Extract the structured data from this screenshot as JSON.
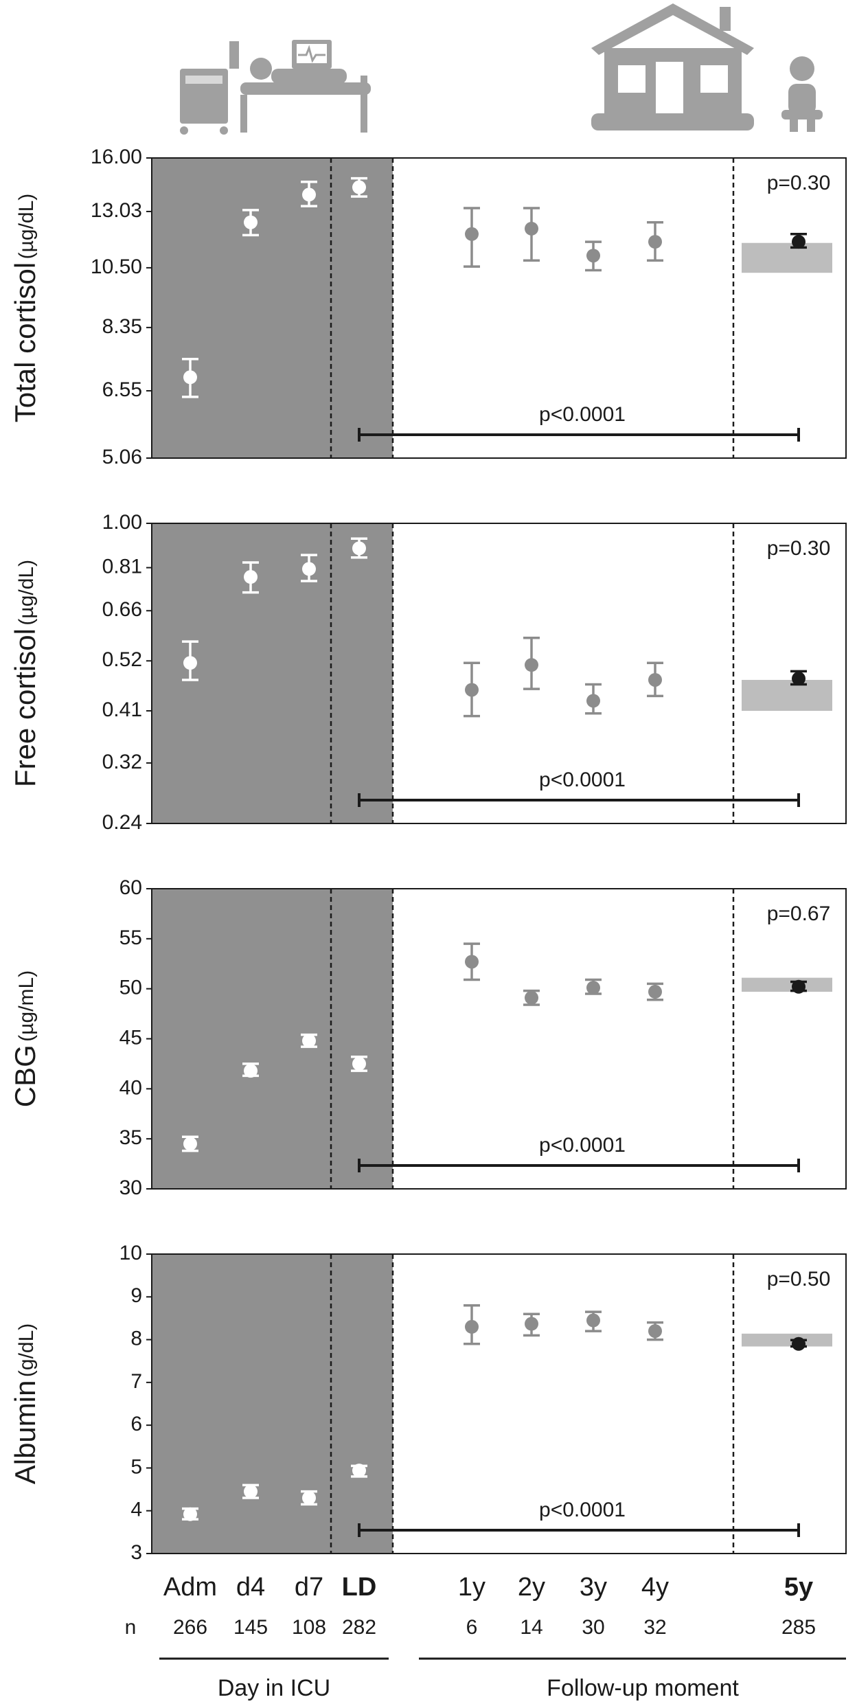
{
  "x_axis": {
    "categories": [
      "Adm",
      "d4",
      "d7",
      "LD",
      "1y",
      "2y",
      "3y",
      "4y",
      "5y"
    ],
    "n_label": "n",
    "n": [
      266,
      145,
      108,
      282,
      6,
      14,
      30,
      32,
      285
    ],
    "groups": [
      "Day in ICU",
      "Follow-up moment"
    ]
  },
  "chart_data": [
    {
      "type": "errorbar",
      "ylabel": "Total cortisol",
      "yunit": "(µg/dL)",
      "log_scale": true,
      "ylim": [
        5.06,
        16
      ],
      "yticks": [
        5.06,
        6.55,
        8.35,
        {
          "value": 10.5,
          "label": "10.50"
        },
        13.03,
        {
          "value": 16,
          "label": "16.00"
        }
      ],
      "values": [
        6.9,
        12.5,
        13.9,
        14.3,
        11.95,
        12.2,
        11.0,
        11.6,
        11.6
      ],
      "lower": [
        6.4,
        11.9,
        13.3,
        13.8,
        10.55,
        10.8,
        10.4,
        10.8,
        11.35
      ],
      "upper": [
        7.4,
        13.1,
        14.6,
        14.8,
        13.2,
        13.2,
        11.6,
        12.5,
        11.95
      ],
      "colors": [
        "#ffffff",
        "#ffffff",
        "#ffffff",
        "#ffffff",
        "#8c8c8c",
        "#8c8c8c",
        "#8c8c8c",
        "#8c8c8c",
        "#1a1a1a"
      ],
      "reference_band": [
        10.3,
        11.55
      ],
      "band_color": "#bdbdbd",
      "p_control": "p=0.30",
      "p_trend": "p<0.0001"
    },
    {
      "type": "errorbar",
      "ylabel": "Free cortisol",
      "yunit": "(µg/dL)",
      "log_scale": true,
      "ylim": [
        0.24,
        1
      ],
      "yticks": [
        0.24,
        0.32,
        0.41,
        0.52,
        0.66,
        0.81,
        {
          "value": 1,
          "label": "1.00"
        }
      ],
      "values": [
        0.515,
        0.775,
        0.805,
        0.888,
        0.453,
        0.51,
        0.43,
        0.475,
        0.478
      ],
      "lower": [
        0.475,
        0.72,
        0.76,
        0.85,
        0.4,
        0.455,
        0.405,
        0.44,
        0.465
      ],
      "upper": [
        0.57,
        0.83,
        0.86,
        0.93,
        0.515,
        0.58,
        0.465,
        0.515,
        0.495
      ],
      "colors": [
        "#ffffff",
        "#ffffff",
        "#ffffff",
        "#ffffff",
        "#8c8c8c",
        "#8c8c8c",
        "#8c8c8c",
        "#8c8c8c",
        "#1a1a1a"
      ],
      "reference_band": [
        0.41,
        0.475
      ],
      "band_color": "#bdbdbd",
      "p_control": "p=0.30",
      "p_trend": "p<0.0001"
    },
    {
      "type": "errorbar",
      "ylabel": "CBG",
      "yunit": "(µg/mL)",
      "log_scale": false,
      "ylim": [
        30,
        60
      ],
      "yticks": [
        30,
        35,
        40,
        45,
        50,
        55,
        60
      ],
      "values": [
        34.5,
        41.8,
        44.8,
        42.5,
        52.7,
        49.1,
        50.1,
        49.7,
        50.2
      ],
      "lower": [
        33.8,
        41.3,
        44.2,
        41.8,
        50.9,
        48.4,
        49.5,
        48.9,
        49.8
      ],
      "upper": [
        35.2,
        42.5,
        45.4,
        43.2,
        54.5,
        49.8,
        50.9,
        50.5,
        50.7
      ],
      "colors": [
        "#ffffff",
        "#ffffff",
        "#ffffff",
        "#ffffff",
        "#8c8c8c",
        "#8c8c8c",
        "#8c8c8c",
        "#8c8c8c",
        "#1a1a1a"
      ],
      "reference_band": [
        49.7,
        51.1
      ],
      "band_color": "#bdbdbd",
      "p_control": "p=0.67",
      "p_trend": "p<0.0001"
    },
    {
      "type": "errorbar",
      "ylabel": "Albumin",
      "yunit": "(g/dL)",
      "log_scale": false,
      "ylim": [
        3,
        10
      ],
      "yticks": [
        3,
        4,
        5,
        6,
        7,
        8,
        9,
        10
      ],
      "values": [
        3.92,
        4.45,
        4.3,
        4.94,
        8.3,
        8.37,
        8.45,
        8.2,
        7.9
      ],
      "lower": [
        3.8,
        4.3,
        4.15,
        4.8,
        7.9,
        8.1,
        8.2,
        8.0,
        7.84
      ],
      "upper": [
        4.05,
        4.6,
        4.45,
        5.05,
        8.8,
        8.6,
        8.65,
        8.4,
        7.99
      ],
      "colors": [
        "#ffffff",
        "#ffffff",
        "#ffffff",
        "#ffffff",
        "#8c8c8c",
        "#8c8c8c",
        "#8c8c8c",
        "#8c8c8c",
        "#1a1a1a"
      ],
      "reference_band": [
        7.84,
        8.14
      ],
      "band_color": "#bdbdbd",
      "p_control": "p=0.50",
      "p_trend": "p<0.0001"
    }
  ]
}
